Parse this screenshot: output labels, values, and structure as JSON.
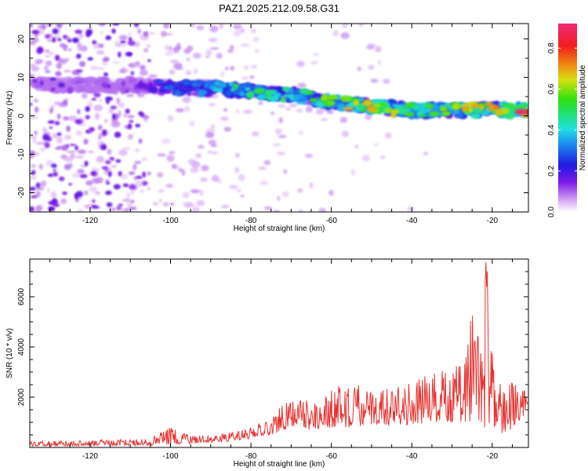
{
  "figure": {
    "title": "PAZ1.2025.212.09.58.G31"
  },
  "chart_data": [
    {
      "type": "heatmap",
      "xlabel": "Height of straight line (km)",
      "ylabel": "Frequency (Hz)",
      "xlim": [
        -135,
        -11
      ],
      "ylim": [
        -25,
        24
      ],
      "xticks": [
        -120,
        -100,
        -80,
        -60,
        -40,
        -20
      ],
      "yticks": [
        -20,
        -10,
        0,
        10,
        20
      ],
      "colorbar": {
        "label": "Normalized spectral amplitude",
        "range": [
          0,
          0.92
        ],
        "ticks": [
          0.0,
          0.2,
          0.4,
          0.6,
          0.8
        ],
        "colormap": "rainbow (white, purple, blue, cyan, green, yellow, orange, red, magenta)"
      },
      "ridge": {
        "description": "main band of high amplitude",
        "x": [
          -110,
          -100,
          -90,
          -80,
          -70,
          -60,
          -50,
          -40,
          -30,
          -20,
          -11
        ],
        "y": [
          8,
          7.5,
          7,
          6.5,
          5.5,
          3.5,
          2.5,
          1.5,
          1.5,
          1.5,
          1.5
        ],
        "peak_amplitude": [
          0.1,
          0.3,
          0.4,
          0.5,
          0.45,
          0.6,
          0.65,
          0.6,
          0.6,
          0.7,
          0.9
        ]
      },
      "grid": false
    },
    {
      "type": "line",
      "xlabel": "Height of straight line (km)",
      "ylabel": "SNR (10 * v/v)",
      "xlim": [
        -135,
        -11
      ],
      "ylim": [
        0,
        7500
      ],
      "xticks": [
        -120,
        -100,
        -80,
        -60,
        -40,
        -20
      ],
      "yticks": [
        2000,
        4000,
        6000
      ],
      "color": "#e8322f",
      "envelope": {
        "x": [
          -135,
          -120,
          -105,
          -100,
          -95,
          -90,
          -85,
          -80,
          -75,
          -72,
          -70,
          -65,
          -60,
          -55,
          -50,
          -45,
          -40,
          -35,
          -30,
          -27,
          -25,
          -23,
          -21,
          -19,
          -15,
          -11
        ],
        "low": [
          50,
          60,
          80,
          120,
          150,
          200,
          250,
          350,
          500,
          700,
          800,
          700,
          800,
          800,
          900,
          900,
          900,
          1000,
          1000,
          1000,
          900,
          800,
          800,
          500,
          700,
          1500
        ],
        "high": [
          250,
          300,
          350,
          900,
          500,
          500,
          600,
          800,
          1200,
          1800,
          1900,
          2000,
          2300,
          2700,
          2200,
          2400,
          2800,
          2900,
          3200,
          3500,
          5500,
          4200,
          7500,
          2500,
          2900,
          2100
        ]
      },
      "grid": false
    }
  ]
}
